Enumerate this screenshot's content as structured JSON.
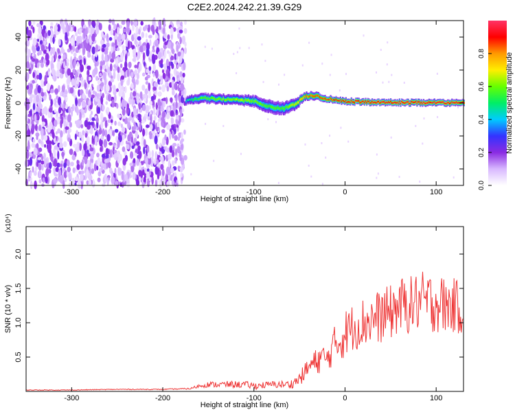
{
  "title": "C2E2.2024.242.21.39.G29",
  "chart_data": [
    {
      "type": "heatmap",
      "xlabel": "Height of straight line (km)",
      "ylabel": "Frequency (Hz)",
      "xlim": [
        -350,
        130
      ],
      "ylim": [
        -50,
        50
      ],
      "xticks": [
        -300,
        -200,
        -100,
        0,
        100
      ],
      "yticks": [
        -40,
        -20,
        0,
        20,
        40
      ],
      "colorbar": {
        "label": "Normalized spectral amplitude",
        "range": [
          0.0,
          1.0
        ],
        "ticks": [
          "0.0",
          "0.2",
          "0.4",
          "0.6",
          "0.8"
        ],
        "colors": [
          "#ffffff",
          "#d8b8ff",
          "#8a2be2",
          "#3333ff",
          "#00ccff",
          "#00ee66",
          "#66ff00",
          "#ffee00",
          "#ff9900",
          "#ff0000",
          "#ff3366"
        ]
      },
      "noise_region_x": [
        -350,
        -175
      ],
      "signal_track": [
        {
          "x": -175,
          "y": 1.5,
          "width": 5,
          "amp": 0.45
        },
        {
          "x": -160,
          "y": 3.0,
          "width": 6,
          "amp": 0.55
        },
        {
          "x": -140,
          "y": 2.5,
          "width": 6,
          "amp": 0.6
        },
        {
          "x": -120,
          "y": 2.0,
          "width": 6,
          "amp": 0.62
        },
        {
          "x": -100,
          "y": 1.0,
          "width": 7,
          "amp": 0.6
        },
        {
          "x": -85,
          "y": -2.0,
          "width": 8,
          "amp": 0.55
        },
        {
          "x": -70,
          "y": -3.5,
          "width": 8,
          "amp": 0.55
        },
        {
          "x": -55,
          "y": -1.0,
          "width": 7,
          "amp": 0.65
        },
        {
          "x": -45,
          "y": 4.0,
          "width": 5,
          "amp": 0.8
        },
        {
          "x": -35,
          "y": 4.5,
          "width": 5,
          "amp": 0.85
        },
        {
          "x": -20,
          "y": 2.5,
          "width": 4,
          "amp": 0.85
        },
        {
          "x": 0,
          "y": 1.0,
          "width": 4,
          "amp": 0.9
        },
        {
          "x": 25,
          "y": 0.5,
          "width": 4,
          "amp": 0.92
        },
        {
          "x": 50,
          "y": 0.3,
          "width": 4,
          "amp": 0.92
        },
        {
          "x": 75,
          "y": 0.2,
          "width": 4,
          "amp": 0.93
        },
        {
          "x": 100,
          "y": 0.2,
          "width": 4,
          "amp": 0.93
        },
        {
          "x": 130,
          "y": 0.0,
          "width": 4,
          "amp": 0.92
        }
      ]
    },
    {
      "type": "line",
      "xlabel": "Height of straight line (km)",
      "ylabel": "SNR (10 * v/v)",
      "yscale_label": "(x10⁴)",
      "xlim": [
        -350,
        130
      ],
      "ylim": [
        0,
        2.4
      ],
      "xticks": [
        -300,
        -200,
        -100,
        0,
        100
      ],
      "yticks": [
        "0.5",
        "1.0",
        "1.5",
        "2.0"
      ],
      "line_color": "#ee3333",
      "series": [
        {
          "x": [
            -350,
            -300,
            -250,
            -200,
            -170,
            -160,
            -150,
            -130,
            -110,
            -100,
            -80,
            -60,
            -50,
            -40,
            -30,
            -25,
            -20,
            -15,
            -10,
            -5,
            0,
            10,
            20,
            30,
            40,
            50,
            60,
            70,
            80,
            90,
            100,
            110,
            120,
            130
          ],
          "y": [
            0.02,
            0.02,
            0.03,
            0.03,
            0.04,
            0.08,
            0.1,
            0.1,
            0.1,
            0.08,
            0.1,
            0.1,
            0.18,
            0.35,
            0.45,
            0.5,
            0.45,
            0.6,
            0.7,
            0.75,
            0.85,
            0.95,
            1.0,
            1.05,
            1.1,
            1.15,
            1.25,
            1.25,
            1.3,
            1.3,
            1.3,
            1.25,
            1.25,
            1.2
          ],
          "noise": [
            0.005,
            0.005,
            0.006,
            0.006,
            0.01,
            0.03,
            0.04,
            0.05,
            0.05,
            0.05,
            0.05,
            0.06,
            0.1,
            0.15,
            0.2,
            0.22,
            0.18,
            0.25,
            0.3,
            0.33,
            0.35,
            0.35,
            0.38,
            0.38,
            0.4,
            0.4,
            0.42,
            0.42,
            0.45,
            0.45,
            0.45,
            0.42,
            0.4,
            0.4
          ]
        }
      ]
    }
  ]
}
